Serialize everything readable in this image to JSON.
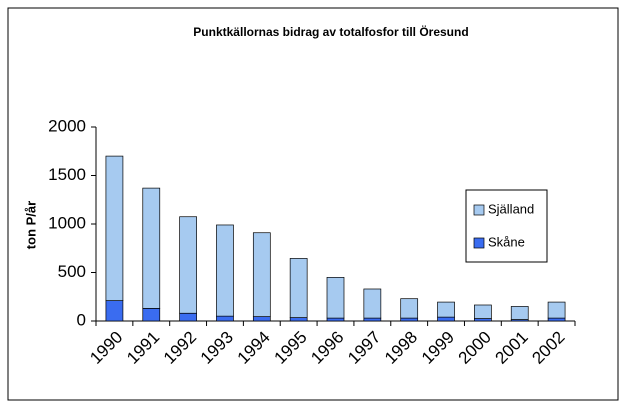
{
  "chart_data": {
    "type": "bar",
    "stacked": true,
    "title": "Punktkällornas bidrag av totalfosfor till Öresund",
    "y_label": "ton P/år",
    "categories": [
      "1990",
      "1991",
      "1992",
      "1993",
      "1994",
      "1995",
      "1996",
      "1997",
      "1998",
      "1999",
      "2000",
      "2001",
      "2002"
    ],
    "series": [
      {
        "name": "Skåne",
        "color": "#3a6cf0",
        "values": [
          210,
          130,
          80,
          50,
          45,
          35,
          30,
          30,
          30,
          40,
          25,
          15,
          30
        ]
      },
      {
        "name": "Själland",
        "color": "#a6caf0",
        "values": [
          1490,
          1240,
          995,
          940,
          865,
          610,
          420,
          300,
          200,
          155,
          140,
          135,
          165
        ]
      }
    ],
    "ylim": [
      0,
      2000
    ],
    "yticks": [
      0,
      500,
      1000,
      1500,
      2000
    ],
    "grid": false,
    "legend": "right"
  }
}
